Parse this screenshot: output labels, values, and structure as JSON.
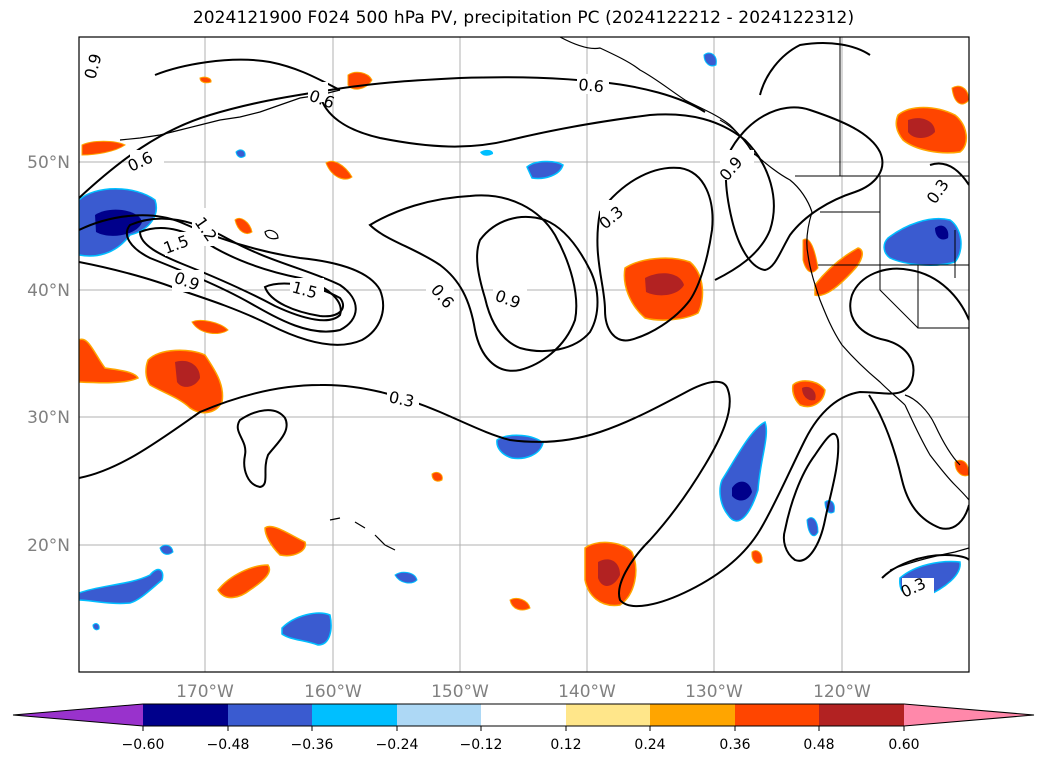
{
  "title": "2024121900 F024 500 hPa PV, precipitation PC (2024122212 - 2024122312)",
  "latitude_labels": [
    "50°N",
    "40°N",
    "30°N",
    "20°N"
  ],
  "longitude_labels": [
    "170°W",
    "160°W",
    "150°W",
    "140°W",
    "130°W",
    "120°W"
  ],
  "colorbar": {
    "tick_labels": [
      "−0.60",
      "−0.48",
      "−0.36",
      "−0.24",
      "−0.12",
      "0.12",
      "0.24",
      "0.36",
      "0.48",
      "0.60"
    ],
    "colors": [
      "#9932cc",
      "#00008b",
      "#3a5bd0",
      "#00bfff",
      "#add8f5",
      "#ffffff",
      "#ffe68a",
      "#ffa500",
      "#ff4500",
      "#b22222",
      "#ff88aa"
    ]
  },
  "pv_contour_labels": [
    "0.9",
    "0.6",
    "0.6",
    "0.6",
    "1.2",
    "1.5",
    "1.5",
    "0.9",
    "0.3",
    "0.6",
    "0.9",
    "0.3",
    "0.9",
    "0.3",
    "0.3"
  ],
  "colors": {
    "negative_fill": "#3a5bd0",
    "negative_core": "#00008b",
    "negative_rim": "#00bfff",
    "positive_fill": "#ff4500",
    "positive_core": "#b22222",
    "positive_rim": "#ffa500",
    "gridline": "#b0b0b0"
  }
}
